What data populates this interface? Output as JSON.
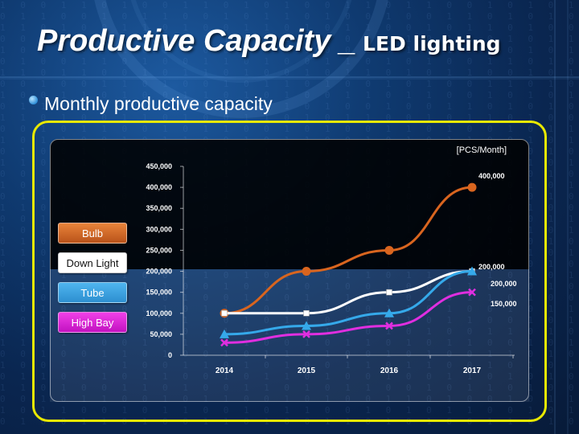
{
  "title": {
    "main": "Productive Capacity _",
    "sub": "LED lighting"
  },
  "bullet": "Monthly productive capacity",
  "unit": "[PCS/Month]",
  "chart_data": {
    "type": "line",
    "categories": [
      "2014",
      "2015",
      "2016",
      "2017"
    ],
    "ylim": [
      0,
      450000
    ],
    "yticks": [
      "0",
      "50,000",
      "100,000",
      "150,000",
      "200,000",
      "250,000",
      "300,000",
      "350,000",
      "400,000",
      "450,000"
    ],
    "series": [
      {
        "name": "Bulb",
        "color": "#d9651f",
        "marker": "circle",
        "values": [
          100000,
          200000,
          250000,
          400000
        ]
      },
      {
        "name": "Down Light",
        "color": "#ffffff",
        "marker": "square",
        "values": [
          100000,
          100000,
          150000,
          200000
        ]
      },
      {
        "name": "Tube",
        "color": "#35a9ea",
        "marker": "triangle",
        "values": [
          50000,
          70000,
          100000,
          200000
        ]
      },
      {
        "name": "High Bay",
        "color": "#e02ee0",
        "marker": "x",
        "values": [
          30000,
          50000,
          70000,
          150000
        ]
      }
    ],
    "data_labels": [
      "400,000",
      "200,000",
      "200,000",
      "150,000"
    ],
    "legend": "left",
    "grid": false
  }
}
